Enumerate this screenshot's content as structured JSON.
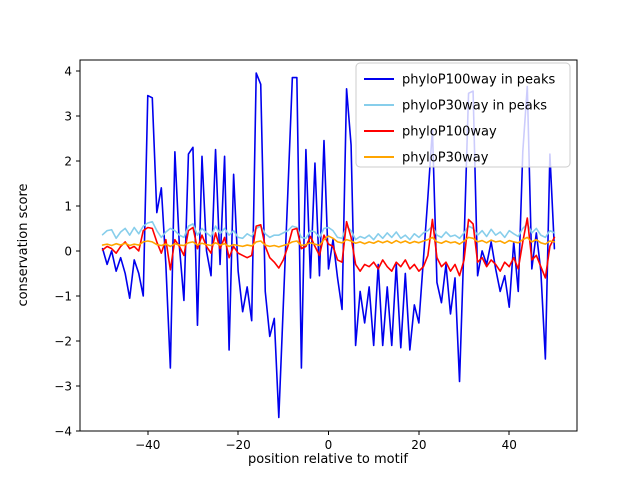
{
  "figure": {
    "xlabel": "position relative to motif",
    "ylabel": "conservation score"
  },
  "chart_data": {
    "type": "line",
    "title": "",
    "xlabel": "position relative to motif",
    "ylabel": "conservation score",
    "grid": false,
    "legend_position": "upper right",
    "xlim": [
      -55,
      55
    ],
    "ylim": [
      -4,
      4.24
    ],
    "xticks": {
      "values": [
        -40,
        -20,
        0,
        20,
        40
      ],
      "labels": [
        "−40",
        "−20",
        "0",
        "20",
        "40"
      ]
    },
    "yticks": {
      "values": [
        -4,
        -3,
        -2,
        -1,
        0,
        1,
        2,
        3,
        4
      ],
      "labels": [
        "−4",
        "−3",
        "−2",
        "−1",
        "0",
        "1",
        "2",
        "3",
        "4"
      ]
    },
    "x": [
      -50,
      -49,
      -48,
      -47,
      -46,
      -45,
      -44,
      -43,
      -42,
      -41,
      -40,
      -39,
      -38,
      -37,
      -36,
      -35,
      -34,
      -33,
      -32,
      -31,
      -30,
      -29,
      -28,
      -27,
      -26,
      -25,
      -24,
      -23,
      -22,
      -21,
      -20,
      -19,
      -18,
      -17,
      -16,
      -15,
      -14,
      -13,
      -12,
      -11,
      -10,
      -9,
      -8,
      -7,
      -6,
      -5,
      -4,
      -3,
      -2,
      -1,
      0,
      1,
      2,
      3,
      4,
      5,
      6,
      7,
      8,
      9,
      10,
      11,
      12,
      13,
      14,
      15,
      16,
      17,
      18,
      19,
      20,
      21,
      22,
      23,
      24,
      25,
      26,
      27,
      28,
      29,
      30,
      31,
      32,
      33,
      34,
      35,
      36,
      37,
      38,
      39,
      40,
      41,
      42,
      43,
      44,
      45,
      46,
      47,
      48,
      49,
      50
    ],
    "series": [
      {
        "name": "phyloP100way in peaks",
        "color": "#0000ee",
        "values": [
          0.05,
          -0.3,
          0.0,
          -0.45,
          -0.15,
          -0.5,
          -1.05,
          -0.2,
          -0.5,
          -1.0,
          3.45,
          3.4,
          0.85,
          1.4,
          -0.3,
          -2.6,
          2.2,
          0.1,
          -1.1,
          2.15,
          2.3,
          -1.65,
          2.1,
          0.0,
          -0.55,
          2.25,
          -0.3,
          2.1,
          -2.2,
          1.7,
          -0.45,
          -1.35,
          -0.8,
          -1.55,
          3.95,
          3.7,
          -0.9,
          -1.9,
          -1.5,
          -3.7,
          -1.2,
          1.3,
          3.85,
          3.85,
          -2.6,
          2.25,
          -0.6,
          1.95,
          -0.55,
          2.45,
          -0.4,
          0.25,
          -0.6,
          -1.3,
          3.6,
          2.35,
          -2.1,
          -0.9,
          -1.6,
          -0.8,
          -2.1,
          -0.3,
          -2.1,
          -0.8,
          -2.1,
          -0.3,
          -2.15,
          -0.5,
          -2.2,
          -1.2,
          -1.6,
          -0.2,
          1.2,
          2.7,
          -0.7,
          -1.15,
          -0.3,
          -1.4,
          -0.6,
          -2.9,
          0.2,
          3.5,
          3.55,
          -0.55,
          0.0,
          -0.3,
          0.2,
          -0.4,
          -0.9,
          -0.55,
          -1.25,
          0.2,
          -0.9,
          2.2,
          3.65,
          -0.4,
          0.4,
          -0.45,
          -2.4,
          2.15,
          0.05
        ]
      },
      {
        "name": "phyloP30way in peaks",
        "color": "#87ceeb",
        "values": [
          0.36,
          0.45,
          0.47,
          0.28,
          0.42,
          0.5,
          0.35,
          0.52,
          0.38,
          0.55,
          0.62,
          0.65,
          0.45,
          0.3,
          0.42,
          0.5,
          0.45,
          0.35,
          0.3,
          0.55,
          0.6,
          0.35,
          0.5,
          0.4,
          0.32,
          0.55,
          0.38,
          0.5,
          0.35,
          0.45,
          0.3,
          0.28,
          0.38,
          0.32,
          0.5,
          0.55,
          0.38,
          0.3,
          0.35,
          0.35,
          0.4,
          0.45,
          0.55,
          0.52,
          0.3,
          0.28,
          0.45,
          0.42,
          0.3,
          0.5,
          0.52,
          0.45,
          0.3,
          0.28,
          0.55,
          0.45,
          0.25,
          0.32,
          0.28,
          0.35,
          0.25,
          0.38,
          0.28,
          0.4,
          0.3,
          0.42,
          0.28,
          0.35,
          0.25,
          0.38,
          0.3,
          0.4,
          0.45,
          0.55,
          0.35,
          0.3,
          0.42,
          0.32,
          0.35,
          0.28,
          0.4,
          0.55,
          0.5,
          0.35,
          0.45,
          0.32,
          0.48,
          0.35,
          0.42,
          0.3,
          0.45,
          0.38,
          0.32,
          0.5,
          0.6,
          0.4,
          0.5,
          0.35,
          0.3,
          0.45,
          0.4
        ]
      },
      {
        "name": "phyloP100way",
        "color": "#ff0000",
        "values": [
          0.02,
          0.1,
          0.05,
          -0.05,
          0.1,
          0.2,
          0.05,
          0.1,
          0.0,
          0.45,
          0.52,
          0.5,
          0.2,
          -0.05,
          0.25,
          -0.42,
          0.25,
          0.1,
          -0.1,
          0.45,
          0.52,
          0.05,
          0.35,
          0.1,
          -0.05,
          0.4,
          0.05,
          0.3,
          -0.15,
          0.1,
          -0.05,
          -0.1,
          -0.15,
          -0.1,
          0.55,
          0.58,
          0.1,
          -0.15,
          -0.25,
          -0.38,
          -0.2,
          0.1,
          0.47,
          0.5,
          0.05,
          0.1,
          0.32,
          0.1,
          -0.1,
          0.35,
          0.15,
          0.1,
          -0.2,
          -0.25,
          0.65,
          0.3,
          -0.3,
          -0.45,
          -0.3,
          -0.35,
          -0.25,
          -0.4,
          -0.2,
          -0.35,
          -0.45,
          -0.25,
          -0.35,
          -0.2,
          -0.4,
          -0.3,
          -0.45,
          -0.35,
          -0.1,
          0.7,
          -0.15,
          -0.35,
          -0.25,
          -0.45,
          -0.3,
          -0.55,
          -0.2,
          0.7,
          0.6,
          -0.25,
          -0.15,
          -0.35,
          -0.2,
          -0.3,
          -0.45,
          -0.25,
          -0.35,
          -0.15,
          -0.4,
          0.2,
          0.73,
          -0.2,
          -0.1,
          -0.35,
          -0.6,
          0.1,
          0.3
        ]
      },
      {
        "name": "phyloP30way",
        "color": "#ffa500",
        "values": [
          0.13,
          0.15,
          0.12,
          0.16,
          0.13,
          0.17,
          0.12,
          0.15,
          0.13,
          0.2,
          0.22,
          0.2,
          0.14,
          0.12,
          0.15,
          0.1,
          0.16,
          0.13,
          0.12,
          0.18,
          0.2,
          0.13,
          0.17,
          0.14,
          0.12,
          0.18,
          0.13,
          0.16,
          0.1,
          0.14,
          0.12,
          0.1,
          0.13,
          0.11,
          0.2,
          0.22,
          0.13,
          0.1,
          0.12,
          0.09,
          0.12,
          0.15,
          0.2,
          0.22,
          0.12,
          0.14,
          0.18,
          0.15,
          0.12,
          0.25,
          0.33,
          0.28,
          0.2,
          0.18,
          0.25,
          0.22,
          0.17,
          0.2,
          0.16,
          0.2,
          0.17,
          0.22,
          0.18,
          0.22,
          0.17,
          0.23,
          0.18,
          0.22,
          0.17,
          0.21,
          0.18,
          0.22,
          0.25,
          0.3,
          0.2,
          0.17,
          0.22,
          0.18,
          0.2,
          0.15,
          0.22,
          0.3,
          0.28,
          0.2,
          0.23,
          0.18,
          0.24,
          0.2,
          0.22,
          0.17,
          0.23,
          0.2,
          0.18,
          0.25,
          0.3,
          0.2,
          0.25,
          0.18,
          0.15,
          0.22,
          0.2
        ]
      }
    ]
  }
}
